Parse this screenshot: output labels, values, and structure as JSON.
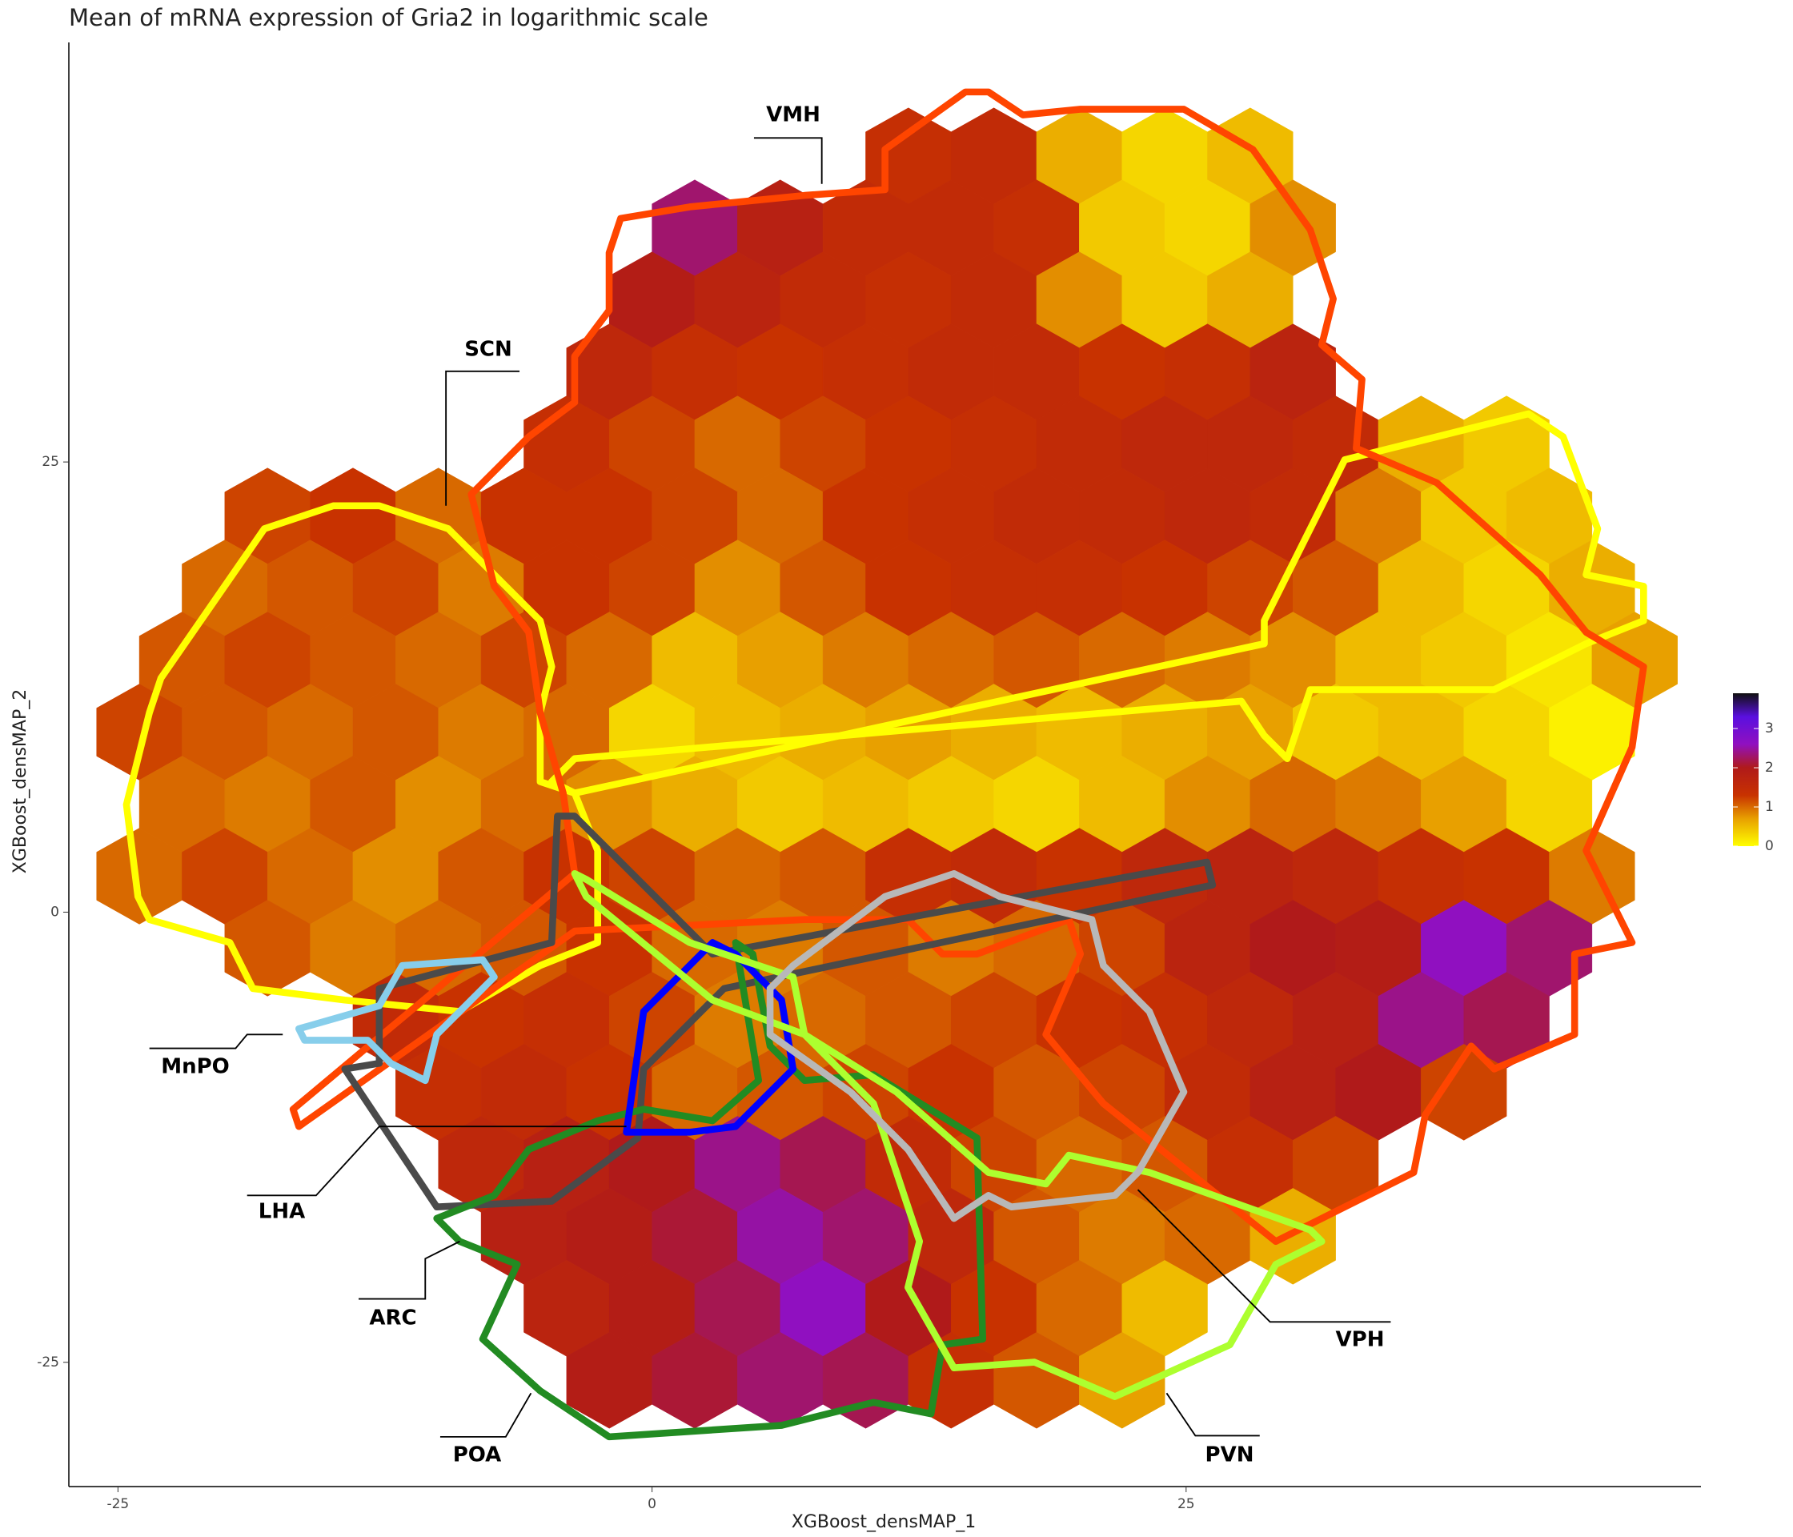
{
  "chart_data": {
    "type": "hexbin",
    "title": "Mean of mRNA expression of Gria2 in logarithmic scale",
    "x_label": "XGBoost_densMAP_1",
    "y_label": "XGBoost_densMAP_2",
    "xlim": [
      -27.3,
      49.1
    ],
    "ylim": [
      -31.9,
      48.3
    ],
    "xticks": [
      -25,
      0,
      25
    ],
    "yticks": [
      -25,
      0,
      25
    ],
    "colorbar": {
      "lim": [
        0,
        3.9
      ],
      "ticks": [
        0,
        1,
        2,
        3
      ],
      "colorscale": [
        [
          0,
          "#ffff00"
        ],
        [
          0.7,
          "#e8a000"
        ],
        [
          1.3,
          "#c83200"
        ],
        [
          2.0,
          "#b01a1a"
        ],
        [
          2.6,
          "#9010c0"
        ],
        [
          3.3,
          "#5a10e0"
        ],
        [
          3.9,
          "#101010"
        ]
      ]
    },
    "rows": [
      {
        "y": 42,
        "x": [
          12,
          16,
          20,
          24,
          28
        ],
        "values": [
          1.4,
          1.5,
          0.6,
          0.3,
          0.5
        ]
      },
      {
        "y": 38,
        "x": [
          2,
          6,
          10,
          14,
          18,
          22,
          26,
          30
        ],
        "values": [
          2.3,
          1.8,
          1.5,
          1.5,
          1.4,
          0.4,
          0.3,
          0.8
        ]
      },
      {
        "y": 34,
        "x": [
          0,
          4,
          8,
          12,
          16,
          20,
          24,
          28
        ],
        "values": [
          1.9,
          1.7,
          1.5,
          1.4,
          1.5,
          0.8,
          0.4,
          0.6
        ]
      },
      {
        "y": 30,
        "x": [
          -2,
          2,
          6,
          10,
          14,
          18,
          22,
          26,
          30
        ],
        "values": [
          1.6,
          1.4,
          1.3,
          1.4,
          1.5,
          1.5,
          1.3,
          1.4,
          1.7
        ]
      },
      {
        "y": 26,
        "x": [
          -4,
          0,
          4,
          8,
          12,
          16,
          20,
          24,
          28,
          32,
          36,
          40
        ],
        "values": [
          1.4,
          1.2,
          1.0,
          1.2,
          1.3,
          1.4,
          1.5,
          1.6,
          1.6,
          1.5,
          0.6,
          0.4
        ]
      },
      {
        "y": 22,
        "x": [
          -18,
          -14,
          -10,
          -6,
          -2,
          2,
          6,
          10,
          14,
          18,
          22,
          26,
          30,
          34,
          38,
          42
        ],
        "values": [
          1.2,
          1.3,
          1.0,
          1.3,
          1.3,
          1.2,
          1.0,
          1.3,
          1.4,
          1.5,
          1.5,
          1.6,
          1.5,
          0.9,
          0.4,
          0.5
        ]
      },
      {
        "y": 18,
        "x": [
          -20,
          -16,
          -12,
          -8,
          -4,
          0,
          4,
          8,
          12,
          16,
          20,
          24,
          28,
          32,
          36,
          40,
          44
        ],
        "values": [
          1.0,
          1.1,
          1.2,
          0.9,
          1.3,
          1.2,
          0.8,
          1.1,
          1.3,
          1.4,
          1.4,
          1.3,
          1.2,
          1.1,
          0.5,
          0.3,
          0.6
        ]
      },
      {
        "y": 14,
        "x": [
          -22,
          -18,
          -14,
          -10,
          -6,
          -2,
          2,
          6,
          10,
          14,
          18,
          22,
          26,
          30,
          34,
          38,
          42,
          46
        ],
        "values": [
          1.1,
          1.2,
          1.1,
          1.0,
          1.2,
          1.0,
          0.5,
          0.7,
          0.9,
          1.0,
          1.1,
          1.0,
          0.9,
          0.8,
          0.5,
          0.4,
          0.2,
          0.7
        ]
      },
      {
        "y": 10,
        "x": [
          -24,
          -20,
          -16,
          -12,
          -8,
          -4,
          0,
          4,
          8,
          12,
          16,
          20,
          24,
          28,
          32,
          36,
          40,
          44
        ],
        "values": [
          1.2,
          1.1,
          1.0,
          1.1,
          0.9,
          1.0,
          0.3,
          0.5,
          0.6,
          0.7,
          0.6,
          0.5,
          0.6,
          0.7,
          0.4,
          0.5,
          0.3,
          0.1
        ]
      },
      {
        "y": 6,
        "x": [
          -22,
          -18,
          -14,
          -10,
          -6,
          -2,
          2,
          6,
          10,
          14,
          18,
          22,
          26,
          30,
          34,
          38,
          42
        ],
        "values": [
          1.0,
          0.9,
          1.1,
          0.8,
          1.0,
          0.8,
          0.6,
          0.4,
          0.5,
          0.4,
          0.3,
          0.5,
          0.8,
          1.0,
          0.9,
          0.7,
          0.3
        ]
      },
      {
        "y": 2,
        "x": [
          -24,
          -20,
          -16,
          -12,
          -8,
          -4,
          0,
          4,
          8,
          12,
          16,
          20,
          24,
          28,
          32,
          36,
          40,
          44
        ],
        "values": [
          1.0,
          1.2,
          1.0,
          0.8,
          1.1,
          1.3,
          1.2,
          1.0,
          1.1,
          1.4,
          1.5,
          1.3,
          1.6,
          1.7,
          1.6,
          1.4,
          1.3,
          0.9
        ]
      },
      {
        "y": -2,
        "x": [
          -18,
          -14,
          -10,
          -6,
          -2,
          2,
          6,
          10,
          14,
          18,
          22,
          26,
          30,
          34,
          38,
          42
        ],
        "values": [
          1.1,
          0.9,
          1.0,
          1.1,
          1.3,
          1.0,
          0.9,
          1.1,
          0.9,
          1.0,
          1.2,
          1.7,
          2.0,
          1.9,
          2.6,
          2.3
        ]
      },
      {
        "y": -6,
        "x": [
          -12,
          -8,
          -4,
          0,
          4,
          8,
          12,
          16,
          20,
          24,
          28,
          32,
          36,
          40
        ],
        "values": [
          1.5,
          1.3,
          1.4,
          1.2,
          0.9,
          1.0,
          1.1,
          1.2,
          1.3,
          1.4,
          1.6,
          1.8,
          2.4,
          2.2
        ]
      },
      {
        "y": -10,
        "x": [
          -10,
          -6,
          -2,
          2,
          6,
          10,
          14,
          18,
          22,
          26,
          30,
          34,
          38
        ],
        "values": [
          1.4,
          1.5,
          1.3,
          1.0,
          1.1,
          1.2,
          1.3,
          1.1,
          1.2,
          1.5,
          1.8,
          2.0,
          1.2
        ]
      },
      {
        "y": -14,
        "x": [
          -8,
          -4,
          0,
          4,
          8,
          12,
          16,
          20,
          24,
          28,
          32
        ],
        "values": [
          1.6,
          1.8,
          2.0,
          2.4,
          2.2,
          1.5,
          1.2,
          1.0,
          1.1,
          1.4,
          1.2
        ]
      },
      {
        "y": -18,
        "x": [
          -6,
          -2,
          2,
          6,
          10,
          14,
          18,
          22,
          26,
          30
        ],
        "values": [
          1.8,
          1.9,
          2.1,
          2.5,
          2.3,
          1.6,
          1.1,
          0.9,
          1.0,
          0.6
        ]
      },
      {
        "y": -22,
        "x": [
          -4,
          0,
          4,
          8,
          12,
          16,
          20,
          24
        ],
        "values": [
          1.7,
          1.9,
          2.2,
          2.6,
          2.0,
          1.3,
          1.0,
          0.5
        ]
      },
      {
        "y": -26,
        "x": [
          -2,
          2,
          6,
          10,
          14,
          18,
          22
        ],
        "values": [
          1.9,
          2.1,
          2.3,
          2.2,
          1.4,
          1.1,
          0.7
        ]
      }
    ],
    "annotations": [
      "VMH",
      "SCN",
      "MnPO",
      "LHA",
      "ARC",
      "POA",
      "VPH",
      "PVN"
    ]
  }
}
